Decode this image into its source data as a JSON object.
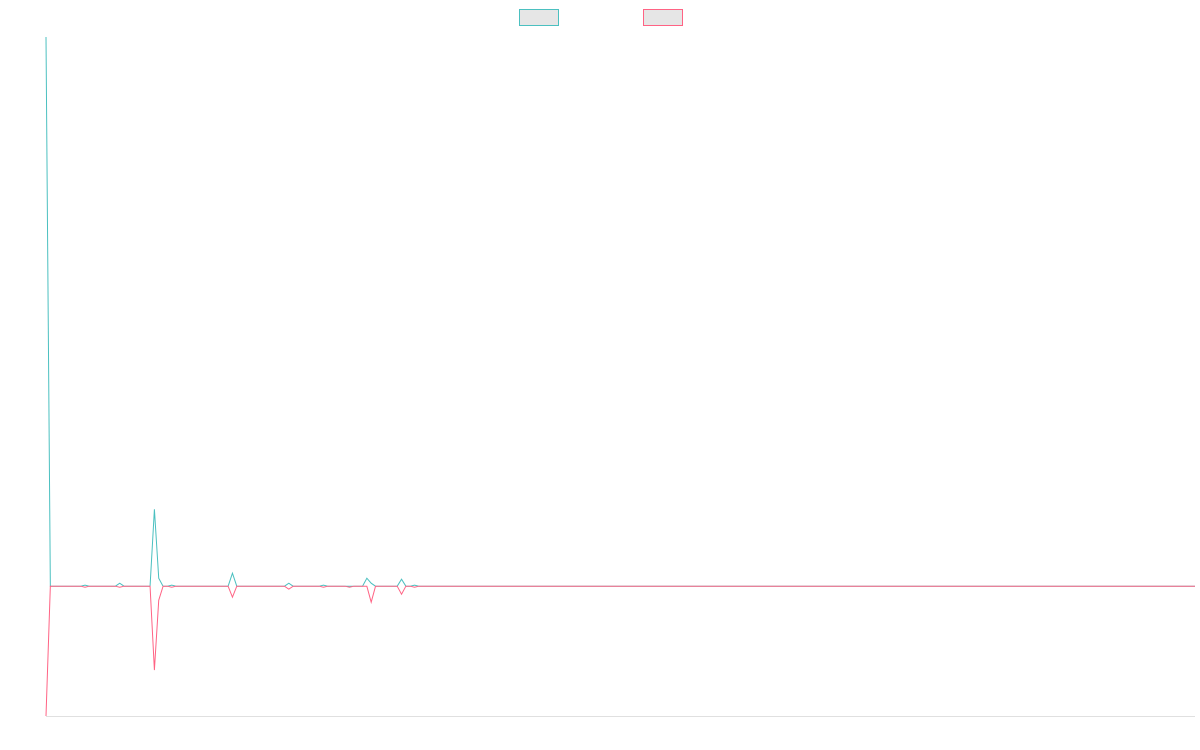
{
  "chart_data": {
    "type": "line",
    "x": [
      0,
      1,
      8,
      9,
      10,
      16,
      17,
      18,
      24,
      25,
      26,
      27,
      28,
      29,
      30,
      42,
      43,
      44,
      55,
      56,
      57,
      63,
      64,
      65,
      69,
      70,
      71,
      73,
      74,
      75,
      76,
      81,
      82,
      83,
      84,
      85,
      86,
      265
    ],
    "series": [
      {
        "color": "#4bc0c0",
        "values": [
          55,
          0,
          0,
          0.1,
          0,
          0,
          0.3,
          0,
          0,
          7.7,
          0.8,
          0,
          0,
          0.1,
          0,
          0,
          1.3,
          0,
          0,
          0.3,
          0,
          0,
          0.1,
          0,
          0,
          0,
          0,
          0,
          0.8,
          0.3,
          0,
          0,
          0.7,
          0,
          0,
          0.1,
          0,
          0
        ]
      },
      {
        "color": "#ff6384",
        "values": [
          -13,
          0,
          0,
          -0.1,
          0,
          0,
          -0.1,
          0,
          0,
          -8.4,
          -1.4,
          0,
          0,
          -0.1,
          0,
          0,
          -1.1,
          0,
          0,
          -0.3,
          0,
          0,
          -0.1,
          0,
          0,
          -0.1,
          0,
          0,
          0,
          -1.6,
          0,
          0,
          -0.8,
          0,
          0,
          -0.1,
          0,
          0
        ]
      }
    ],
    "xlim": [
      0,
      265
    ],
    "ylim": [
      -13,
      55
    ],
    "legend": "top",
    "legend_fill": "#e6e6e6"
  }
}
